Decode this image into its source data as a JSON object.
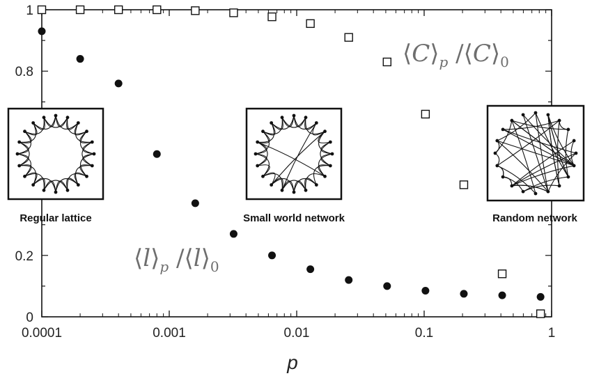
{
  "chart_data": {
    "type": "scatter",
    "x_scale": "log",
    "xlim": [
      0.0001,
      1
    ],
    "ylim": [
      0,
      1
    ],
    "xlabel": "p",
    "ylabel": "",
    "grid": false,
    "x_ticks": [
      {
        "value": 0.0001,
        "label": "0.0001"
      },
      {
        "value": 0.001,
        "label": "0.001"
      },
      {
        "value": 0.01,
        "label": "0.01"
      },
      {
        "value": 0.1,
        "label": "0.1"
      },
      {
        "value": 1,
        "label": "1"
      }
    ],
    "y_ticks": [
      {
        "value": 0,
        "label": "0"
      },
      {
        "value": 0.2,
        "label": "0.2"
      },
      {
        "value": 0.8,
        "label": "0.8"
      },
      {
        "value": 1,
        "label": "1"
      }
    ],
    "series": [
      {
        "marker": "open-square",
        "label_parts": {
          "open": "⟨",
          "var": "C",
          "close": "⟩",
          "sub": "p",
          "slash": " /⟨",
          "sub0": "0"
        },
        "x": [
          0.0001,
          0.0002,
          0.0004,
          0.0008,
          0.0016,
          0.0032,
          0.0064,
          0.0128,
          0.0256,
          0.0512,
          0.1024,
          0.2048,
          0.4096,
          0.8192
        ],
        "y": [
          1.0,
          1.0,
          1.0,
          1.0,
          0.997,
          0.99,
          0.977,
          0.955,
          0.91,
          0.83,
          0.66,
          0.43,
          0.14,
          0.01
        ]
      },
      {
        "marker": "filled-circle",
        "label_parts": {
          "open": "⟨",
          "var": "l",
          "close": "⟩",
          "sub": "p",
          "slash": " /⟨",
          "sub0": "0"
        },
        "x": [
          0.0001,
          0.0002,
          0.0004,
          0.0008,
          0.0016,
          0.0032,
          0.0064,
          0.0128,
          0.0256,
          0.0512,
          0.1024,
          0.2048,
          0.4096,
          0.8192
        ],
        "y": [
          0.93,
          0.84,
          0.76,
          0.53,
          0.37,
          0.27,
          0.2,
          0.155,
          0.12,
          0.1,
          0.085,
          0.075,
          0.07,
          0.065
        ]
      }
    ],
    "insets": [
      {
        "id": "regular",
        "caption": "Regular lattice"
      },
      {
        "id": "smallworld",
        "caption": "Small world network"
      },
      {
        "id": "random",
        "caption": "Random network"
      }
    ]
  }
}
